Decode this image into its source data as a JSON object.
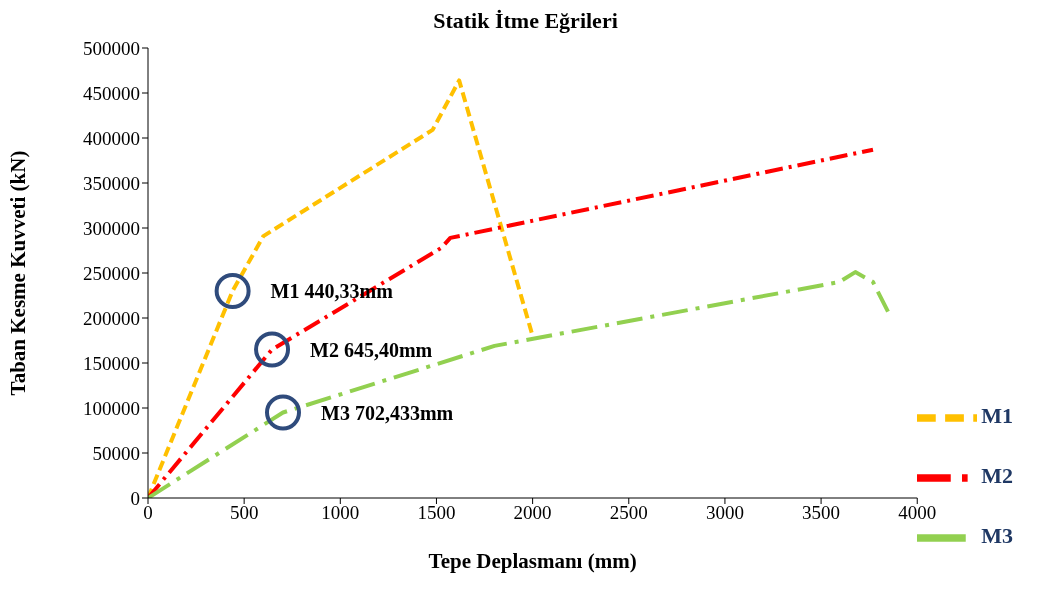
{
  "chart_data": {
    "type": "line",
    "title": "Statik İtme Eğrileri",
    "xlabel": "Tepe Deplasmanı (mm)",
    "ylabel": "Taban Kesme Kuvveti (kN)",
    "xlim": [
      0,
      4000
    ],
    "xticks": [
      0,
      500,
      1000,
      1500,
      2000,
      2500,
      3000,
      3500,
      4000
    ],
    "ylim": [
      0,
      500000
    ],
    "yticks": [
      0,
      50000,
      100000,
      150000,
      200000,
      250000,
      300000,
      350000,
      400000,
      450000,
      500000
    ],
    "grid": false,
    "legend": "right",
    "marker": "none",
    "series": [
      {
        "name": "M1",
        "color": "#ffc000",
        "line_style": "dashed",
        "x": [
          0,
          440,
          600,
          1480,
          1618,
          2000
        ],
        "values": [
          0,
          230000,
          291000,
          409000,
          464000,
          180000
        ]
      },
      {
        "name": "M2",
        "color": "#ff0000",
        "line_style": "dashed",
        "x": [
          0,
          645,
          1526,
          1572,
          3770
        ],
        "values": [
          0,
          165000,
          278000,
          289000,
          387000
        ]
      },
      {
        "name": "M3",
        "color": "#92d050",
        "line_style": "dashed",
        "x": [
          0,
          702,
          1802,
          3595,
          3678,
          3770,
          3848
        ],
        "values": [
          0,
          95000,
          169000,
          240000,
          251000,
          240000,
          207000
        ]
      }
    ],
    "annotations": [
      {
        "text": "M1 440,33mm",
        "x": 440,
        "y": 230000
      },
      {
        "text": "M2 645,40mm",
        "x": 645,
        "y": 165000
      },
      {
        "text": "M3 702,433mm",
        "x": 702,
        "y": 95000
      }
    ]
  }
}
